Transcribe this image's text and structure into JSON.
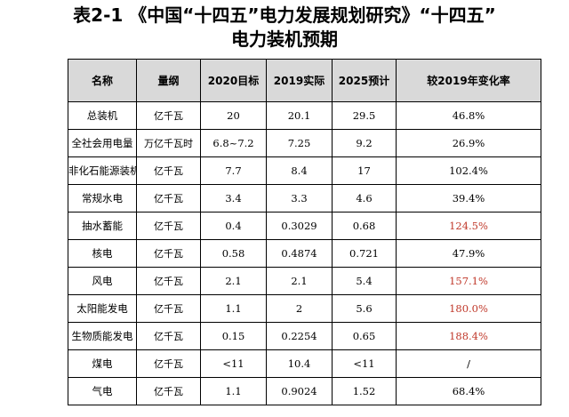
{
  "title": {
    "line1": "表2-1 《中国“十四五”电力发展规划研究》“十四五”",
    "line2": "电力装机预期"
  },
  "table": {
    "headers": [
      "名称",
      "量纲",
      "2020目标",
      "2019实际",
      "2025预计",
      "较2019年变化率"
    ],
    "rows": [
      {
        "name": "总装机",
        "unit": "亿千瓦",
        "t2020": "20",
        "a2019": "20.1",
        "p2025": "29.5",
        "change": "46.8%",
        "highlight": false
      },
      {
        "name": "全社会用电量",
        "unit": "万亿千瓦时",
        "t2020": "6.8~7.2",
        "a2019": "7.25",
        "p2025": "9.2",
        "change": "26.9%",
        "highlight": false
      },
      {
        "name": "非化石能源装机",
        "unit": "亿千瓦",
        "t2020": "7.7",
        "a2019": "8.4",
        "p2025": "17",
        "change": "102.4%",
        "highlight": false
      },
      {
        "name": "常规水电",
        "unit": "亿千瓦",
        "t2020": "3.4",
        "a2019": "3.3",
        "p2025": "4.6",
        "change": "39.4%",
        "highlight": false
      },
      {
        "name": "抽水蓄能",
        "unit": "亿千瓦",
        "t2020": "0.4",
        "a2019": "0.3029",
        "p2025": "0.68",
        "change": "124.5%",
        "highlight": true
      },
      {
        "name": "核电",
        "unit": "亿千瓦",
        "t2020": "0.58",
        "a2019": "0.4874",
        "p2025": "0.721",
        "change": "47.9%",
        "highlight": false
      },
      {
        "name": "风电",
        "unit": "亿千瓦",
        "t2020": "2.1",
        "a2019": "2.1",
        "p2025": "5.4",
        "change": "157.1%",
        "highlight": true
      },
      {
        "name": "太阳能发电",
        "unit": "亿千瓦",
        "t2020": "1.1",
        "a2019": "2",
        "p2025": "5.6",
        "change": "180.0%",
        "highlight": true
      },
      {
        "name": "生物质能发电",
        "unit": "亿千瓦",
        "t2020": "0.15",
        "a2019": "0.2254",
        "p2025": "0.65",
        "change": "188.4%",
        "highlight": true
      },
      {
        "name": "煤电",
        "unit": "亿千瓦",
        "t2020": "<11",
        "a2019": "10.4",
        "p2025": "<11",
        "change": "/",
        "highlight": false
      },
      {
        "name": "气电",
        "unit": "亿千瓦",
        "t2020": "1.1",
        "a2019": "0.9024",
        "p2025": "1.52",
        "change": "68.4%",
        "highlight": false
      }
    ]
  },
  "colors": {
    "header_bg": "#d9d9d9",
    "highlight_text": "#c0392b"
  }
}
